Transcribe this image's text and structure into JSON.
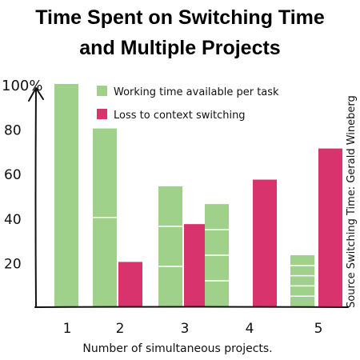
{
  "chart_data": {
    "type": "bar",
    "title_line1": "Time Spent on Switching Time",
    "title_line2": "and Multiple Projects",
    "xlabel": "Number of simultaneous projects.",
    "ylabel": "",
    "ylim": [
      0,
      100
    ],
    "yticks": [
      "100%",
      "80",
      "60",
      "40",
      "20"
    ],
    "ytick_values": [
      100,
      80,
      60,
      40,
      20
    ],
    "categories": [
      "1",
      "2",
      "3",
      "4",
      "5"
    ],
    "series": [
      {
        "name": "Working time available per task",
        "color": "#a0d18a",
        "values": [
          100,
          80,
          54,
          46,
          23
        ],
        "segments": [
          1,
          2,
          3,
          4,
          5
        ]
      },
      {
        "name": "Loss to context switching",
        "color": "#d9336e",
        "values": [
          0,
          20,
          37,
          57,
          71
        ]
      }
    ],
    "legend_position": "top-right",
    "source": "Source Switching Time: Gerald Wineberg",
    "grid": false
  }
}
